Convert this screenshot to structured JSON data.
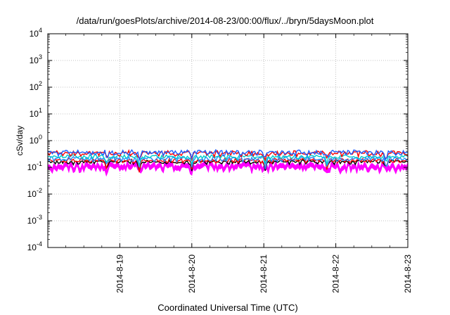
{
  "chart_data": {
    "type": "line",
    "title": "/data/run/goesPlots/archive/2014-08-23/00:00/flux/../bryn/5daysMoon.plot",
    "xlabel": "Coordinated Universal Time (UTC)",
    "ylabel": "cSv/day",
    "yscale": "log",
    "ylim": [
      0.0001,
      10000
    ],
    "xlim": [
      0,
      5
    ],
    "grid": true,
    "y_ticks": [
      {
        "exp": -4,
        "base": "10",
        "sup": "-4"
      },
      {
        "exp": -3,
        "base": "10",
        "sup": "-3"
      },
      {
        "exp": -2,
        "base": "10",
        "sup": "-2"
      },
      {
        "exp": -1,
        "base": "10",
        "sup": "-1"
      },
      {
        "exp": 0,
        "base": "10",
        "sup": "0"
      },
      {
        "exp": 1,
        "base": "10",
        "sup": "1"
      },
      {
        "exp": 2,
        "base": "10",
        "sup": "2"
      },
      {
        "exp": 3,
        "base": "10",
        "sup": "3"
      },
      {
        "exp": 4,
        "base": "10",
        "sup": "4"
      }
    ],
    "x_ticks": [
      {
        "x": 1,
        "label": "2014-8-19"
      },
      {
        "x": 2,
        "label": "2014-8-20"
      },
      {
        "x": 3,
        "label": "2014-8-21"
      },
      {
        "x": 4,
        "label": "2014-8-22"
      },
      {
        "x": 5,
        "label": "2014-8-23"
      }
    ],
    "series": [
      {
        "color": "#ff00ff",
        "fill": true,
        "base": 0.13,
        "var": 0.035,
        "dipDepth": 0.35
      },
      {
        "color": "#000000",
        "base": 0.16,
        "var": 0.025,
        "dipDepth": 0.55
      },
      {
        "color": "#ff0000",
        "base": 0.18,
        "var": 0.03,
        "dipDepth": 0.55
      },
      {
        "color": "#2a8cff",
        "base": 0.21,
        "var": 0.04,
        "dipDepth": 0.55
      },
      {
        "color": "#00cccc",
        "base": 0.25,
        "var": 0.04,
        "dipDepth": 0.5
      },
      {
        "color": "#ff0000",
        "base": 0.34,
        "var": 0.07,
        "dipDepth": 0.45
      },
      {
        "color": "#1e5cff",
        "base": 0.36,
        "var": 0.07,
        "dipDepth": 0.45
      }
    ],
    "dips": [
      0.82,
      1.27,
      2.0,
      3.02,
      3.88,
      4.7
    ]
  }
}
